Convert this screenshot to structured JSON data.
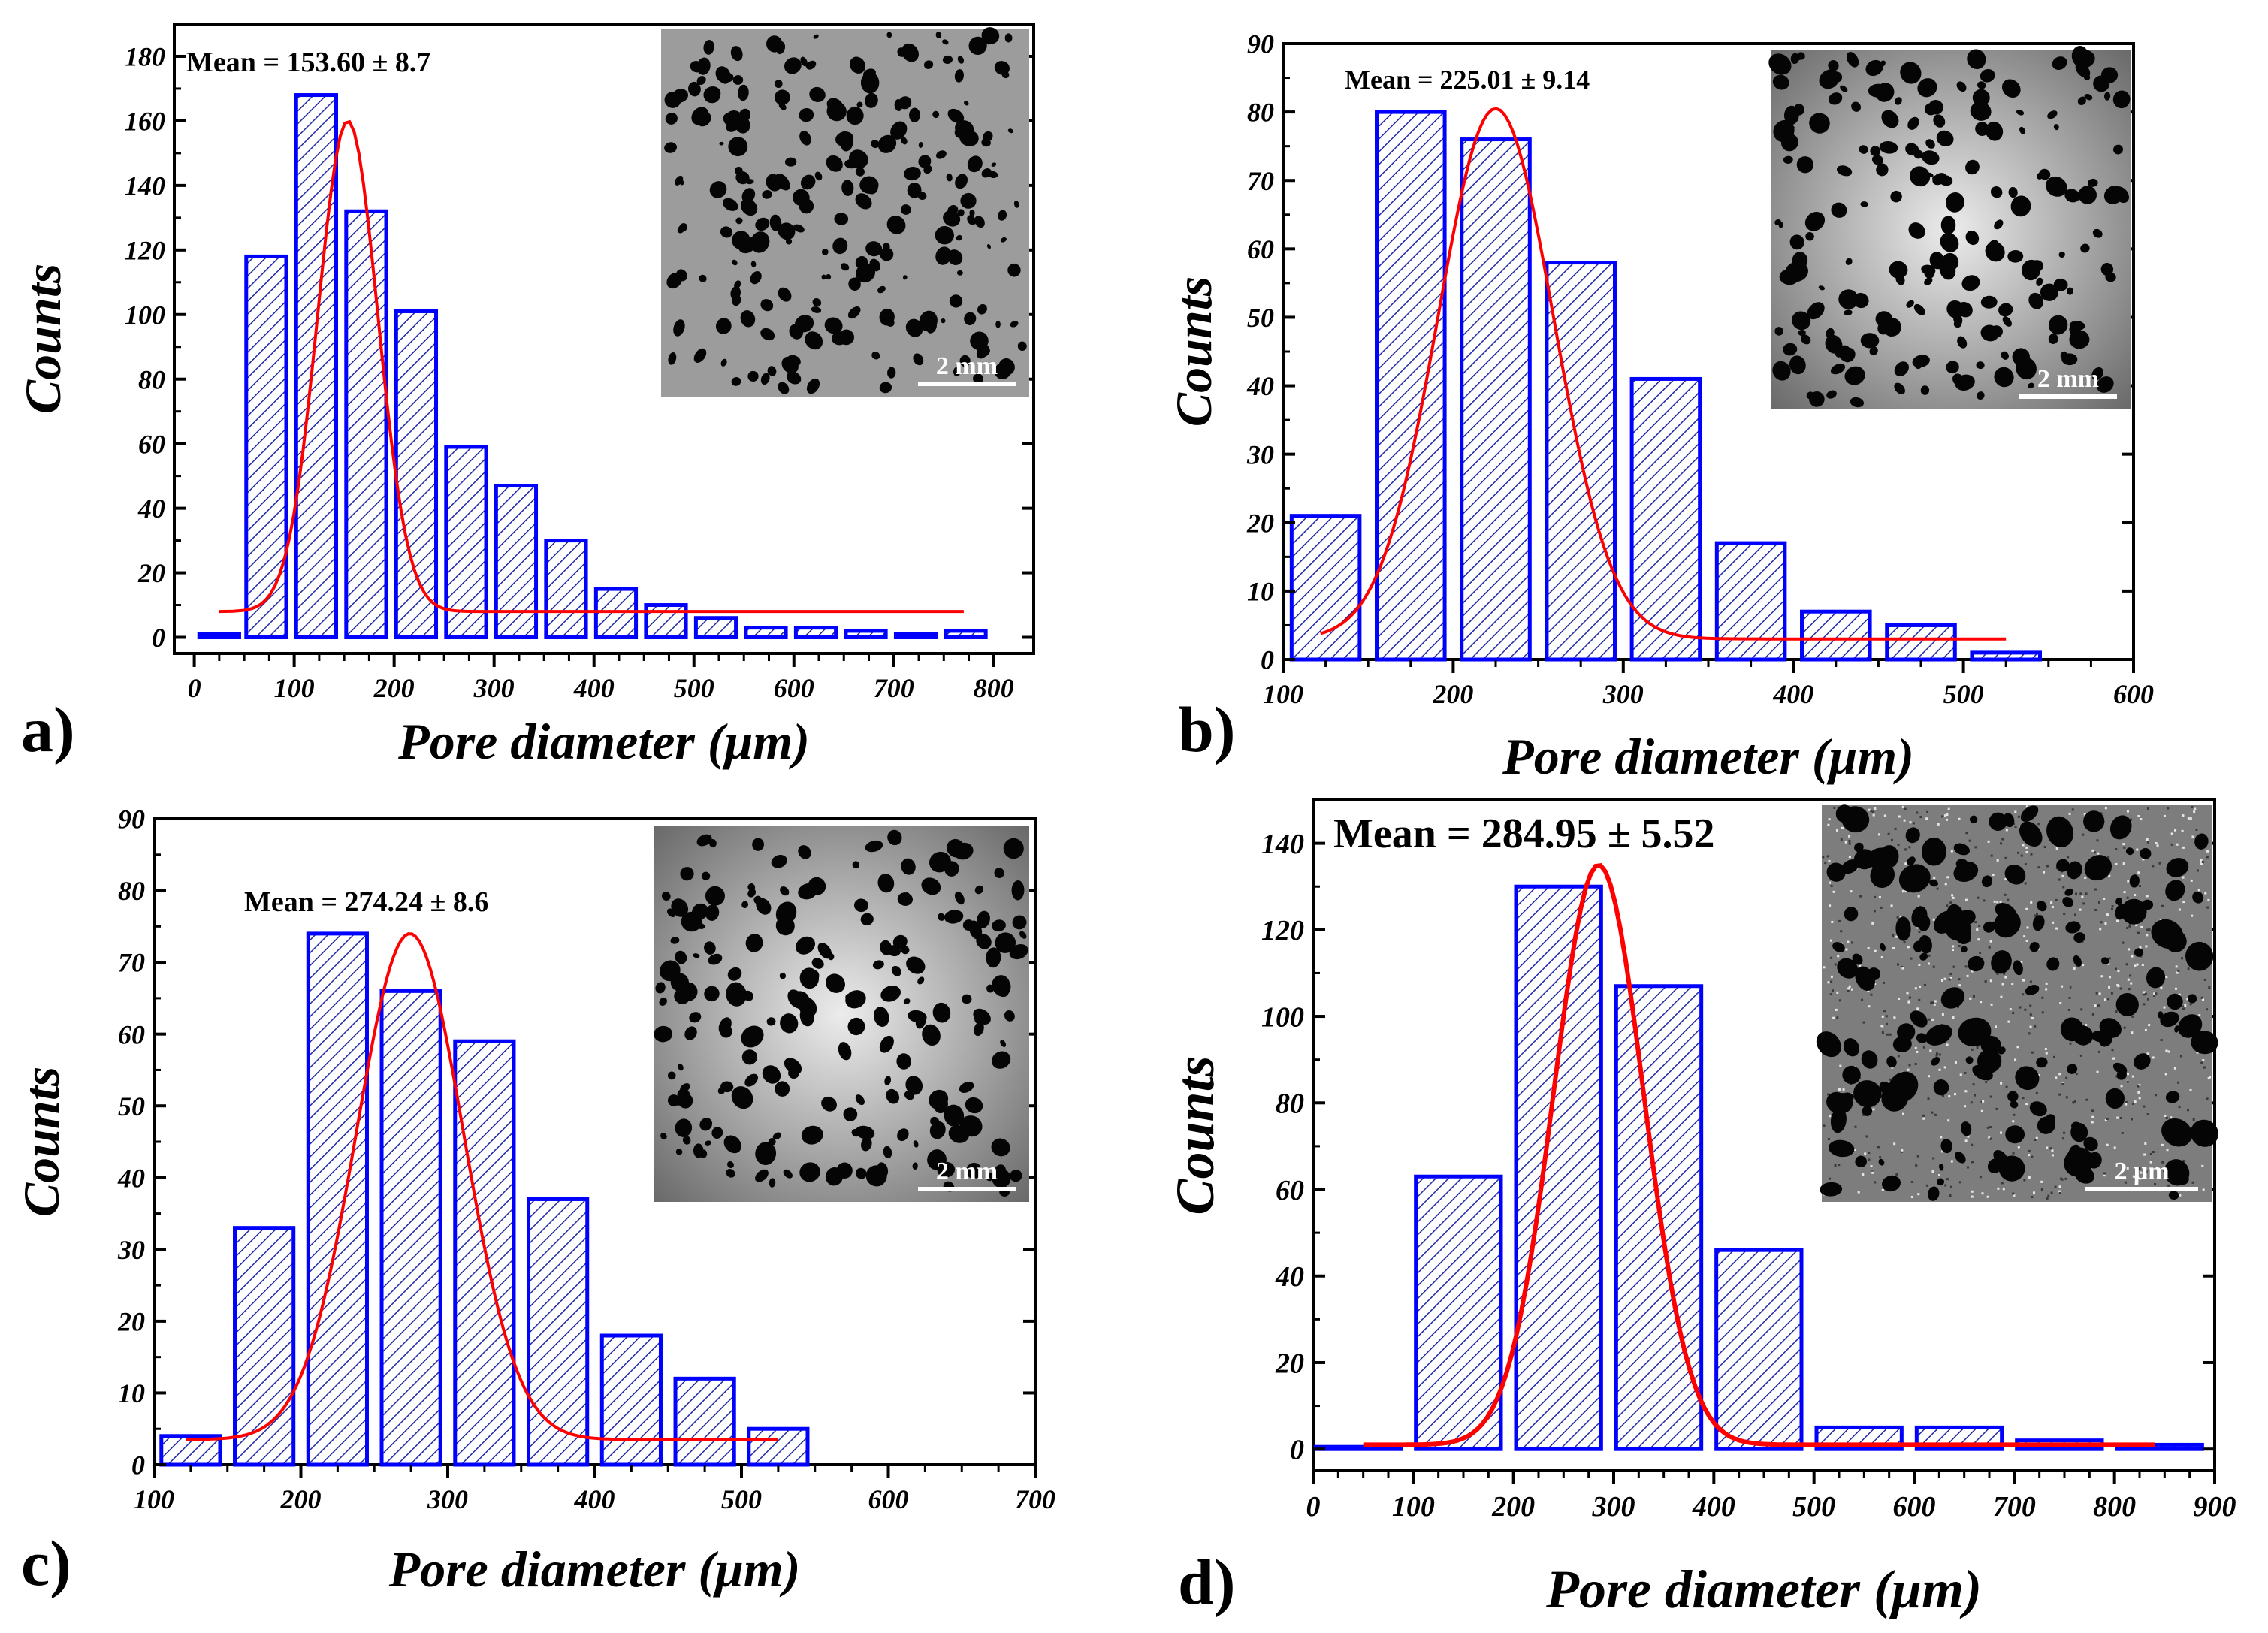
{
  "figure": {
    "colors": {
      "bar_stroke": "#0000ff",
      "bar_hatch": "#1f2aa6",
      "fit_line": "#ff0000",
      "axis": "#000000"
    }
  },
  "chart_data": [
    {
      "id": "a",
      "panel_label": "a)",
      "type": "bar",
      "subtype": "histogram-with-gaussian-fit",
      "title": "",
      "annotation": "Mean = 153.60 ± 8.7",
      "xlabel": "Pore diameter (μm)",
      "ylabel": "Counts",
      "xlim": [
        -20,
        840
      ],
      "ylim": [
        -5,
        190
      ],
      "xticks": [
        0,
        100,
        200,
        300,
        400,
        500,
        600,
        700,
        800
      ],
      "yticks": [
        0,
        20,
        40,
        60,
        80,
        100,
        120,
        140,
        160,
        180
      ],
      "bin_width": 40,
      "bins": [
        {
          "x": 25,
          "count": 1
        },
        {
          "x": 72,
          "count": 118
        },
        {
          "x": 122,
          "count": 168
        },
        {
          "x": 172,
          "count": 132
        },
        {
          "x": 222,
          "count": 101
        },
        {
          "x": 272,
          "count": 59
        },
        {
          "x": 322,
          "count": 47
        },
        {
          "x": 372,
          "count": 30
        },
        {
          "x": 422,
          "count": 15
        },
        {
          "x": 472,
          "count": 10
        },
        {
          "x": 522,
          "count": 6
        },
        {
          "x": 572,
          "count": 3
        },
        {
          "x": 622,
          "count": 3
        },
        {
          "x": 672,
          "count": 2
        },
        {
          "x": 722,
          "count": 1
        },
        {
          "x": 772,
          "count": 2
        }
      ],
      "fit": {
        "type": "gaussian",
        "y0": 8,
        "A": 152,
        "xc": 153.6,
        "w": 60,
        "x_range": [
          25,
          770
        ]
      },
      "inset": {
        "scale_label": "2 mm"
      }
    },
    {
      "id": "b",
      "panel_label": "b)",
      "type": "bar",
      "subtype": "histogram-with-gaussian-fit",
      "title": "",
      "annotation": "Mean = 225.01 ± 9.14",
      "xlabel": "Pore diameter (μm)",
      "ylabel": "Counts",
      "xlim": [
        100,
        600
      ],
      "ylim": [
        0,
        90
      ],
      "xticks": [
        100,
        200,
        300,
        400,
        500,
        600
      ],
      "yticks": [
        0,
        10,
        20,
        30,
        40,
        50,
        60,
        70,
        80,
        90
      ],
      "bin_width": 40,
      "bins": [
        {
          "x": 125,
          "count": 21
        },
        {
          "x": 175,
          "count": 80
        },
        {
          "x": 225,
          "count": 76
        },
        {
          "x": 275,
          "count": 58
        },
        {
          "x": 325,
          "count": 41
        },
        {
          "x": 375,
          "count": 17
        },
        {
          "x": 425,
          "count": 7
        },
        {
          "x": 475,
          "count": 5
        },
        {
          "x": 525,
          "count": 1
        }
      ],
      "fit": {
        "type": "gaussian",
        "y0": 3,
        "A": 77.5,
        "xc": 225.01,
        "w": 68,
        "x_range": [
          122,
          525
        ]
      },
      "inset": {
        "scale_label": "2 mm"
      }
    },
    {
      "id": "c",
      "panel_label": "c)",
      "type": "bar",
      "subtype": "histogram-with-gaussian-fit",
      "title": "",
      "annotation": "Mean = 274.24 ± 8.6",
      "xlabel": "Pore diameter (μm)",
      "ylabel": "Counts",
      "xlim": [
        100,
        700
      ],
      "ylim": [
        0,
        90
      ],
      "xticks": [
        100,
        200,
        300,
        400,
        500,
        600,
        700
      ],
      "yticks": [
        0,
        10,
        20,
        30,
        40,
        50,
        60,
        70,
        80,
        90
      ],
      "bin_width": 40,
      "bins": [
        {
          "x": 125,
          "count": 4
        },
        {
          "x": 175,
          "count": 33
        },
        {
          "x": 225,
          "count": 74
        },
        {
          "x": 275,
          "count": 66
        },
        {
          "x": 325,
          "count": 59
        },
        {
          "x": 375,
          "count": 37
        },
        {
          "x": 425,
          "count": 18
        },
        {
          "x": 475,
          "count": 12
        },
        {
          "x": 525,
          "count": 5
        }
      ],
      "fit": {
        "type": "gaussian",
        "y0": 3.5,
        "A": 70.5,
        "xc": 274.24,
        "w": 73,
        "x_range": [
          122,
          525
        ]
      },
      "inset": {
        "scale_label": "2 mm"
      }
    },
    {
      "id": "d",
      "panel_label": "d)",
      "type": "bar",
      "subtype": "histogram-with-gaussian-fit",
      "title": "",
      "annotation": "Mean = 284.95 ± 5.52",
      "xlabel": "Pore diameter (μm)",
      "ylabel": "Counts",
      "xlim": [
        0,
        900
      ],
      "ylim": [
        -5,
        150
      ],
      "xticks": [
        0,
        100,
        200,
        300,
        400,
        500,
        600,
        700,
        800,
        900
      ],
      "yticks": [
        0,
        20,
        40,
        60,
        80,
        100,
        120,
        140
      ],
      "bin_width": 85,
      "bins": [
        {
          "x": 45,
          "count": 0
        },
        {
          "x": 145,
          "count": 63
        },
        {
          "x": 245,
          "count": 130
        },
        {
          "x": 345,
          "count": 107
        },
        {
          "x": 445,
          "count": 46
        },
        {
          "x": 545,
          "count": 5
        },
        {
          "x": 645,
          "count": 5
        },
        {
          "x": 745,
          "count": 2
        },
        {
          "x": 845,
          "count": 1
        }
      ],
      "fit": {
        "type": "gaussian",
        "y0": 1,
        "A": 134,
        "xc": 284.95,
        "w": 90,
        "x_range": [
          50,
          840
        ]
      },
      "inset": {
        "scale_label": "2 μm"
      }
    }
  ]
}
